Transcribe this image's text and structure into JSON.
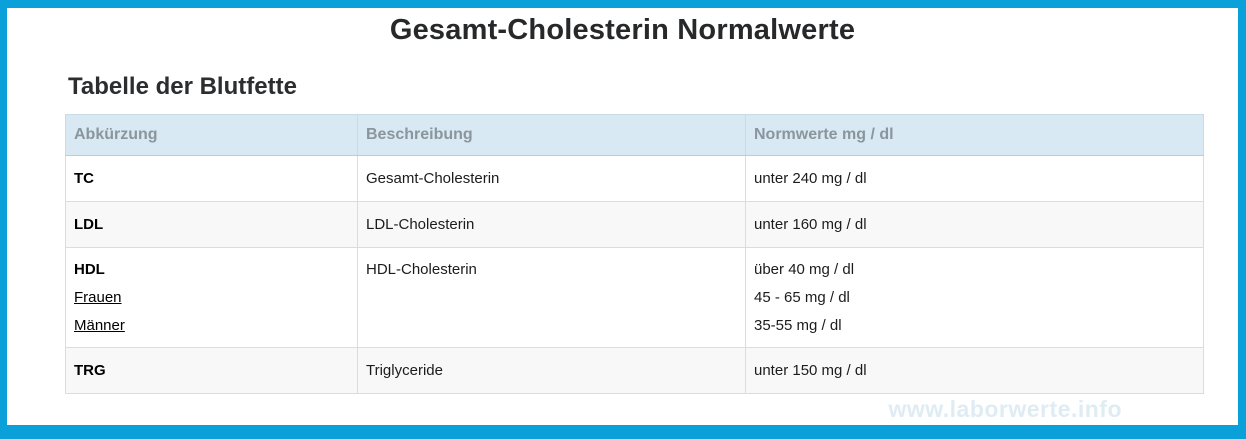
{
  "page": {
    "title": "Gesamt-Cholesterin Normalwerte",
    "section_heading": "Tabelle der Blutfette",
    "watermark": "www.laborwerte.info"
  },
  "colors": {
    "frame_border": "#0aa1da",
    "header_bg": "#d9e9f4",
    "header_text": "#8b959c",
    "alt_row_bg": "#f8f8f8",
    "cell_border": "#dcdcdc",
    "watermark_text": "#dfecf4"
  },
  "table": {
    "headers": [
      "Abkürzung",
      "Beschreibung",
      "Normwerte mg / dl"
    ],
    "rows": [
      {
        "abbr": "TC",
        "description": "Gesamt-Cholesterin",
        "values": [
          "unter 240 mg / dl"
        ]
      },
      {
        "abbr": "LDL",
        "description": "LDL-Cholesterin",
        "values": [
          "unter 160 mg / dl"
        ]
      },
      {
        "abbr": "HDL",
        "sub_links": [
          "Frauen",
          "Männer"
        ],
        "description": "HDL-Cholesterin",
        "values": [
          "über 40 mg / dl",
          "45 - 65 mg / dl",
          "35-55 mg / dl"
        ]
      },
      {
        "abbr": "TRG",
        "description": "Triglyceride",
        "values": [
          "unter 150 mg / dl"
        ]
      }
    ]
  }
}
